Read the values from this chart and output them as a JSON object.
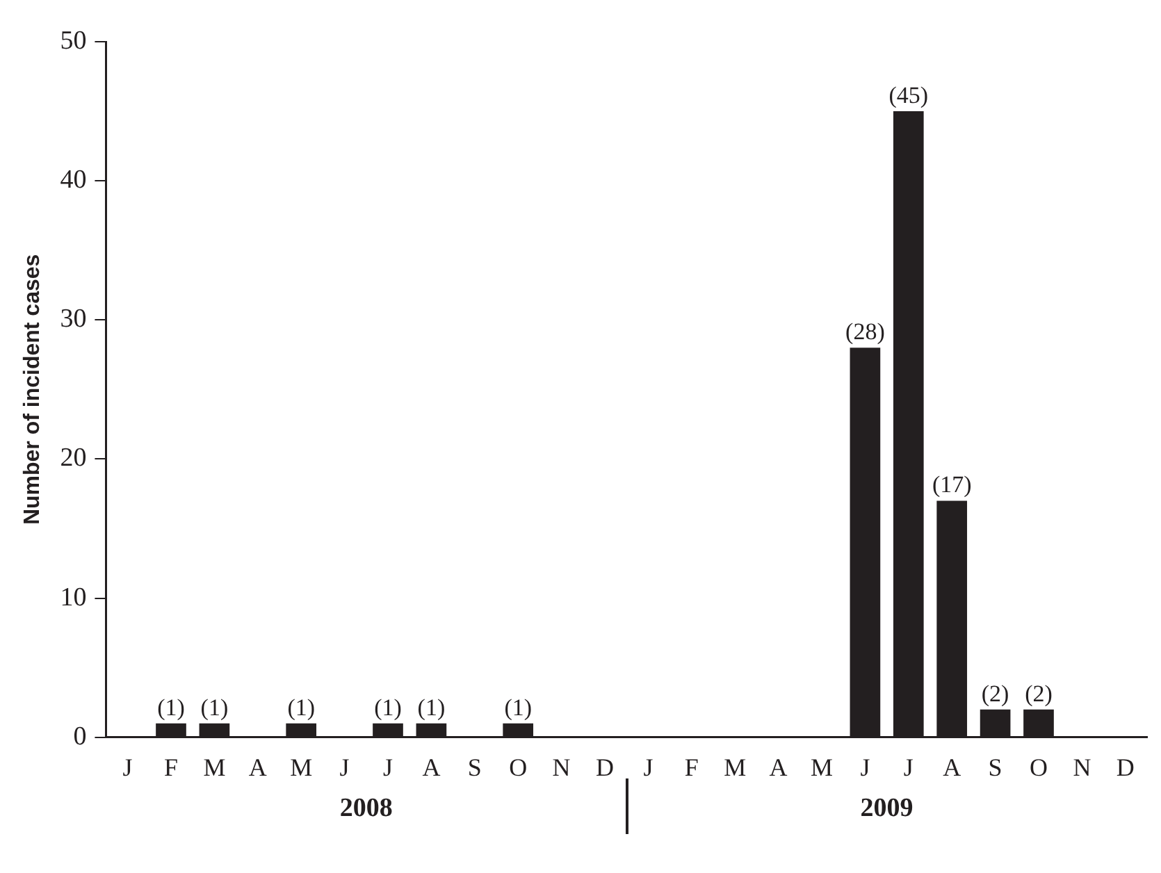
{
  "chart_data": {
    "type": "bar",
    "ylabel": "Number of incident cases",
    "categories": [
      "J",
      "F",
      "M",
      "A",
      "M",
      "J",
      "J",
      "A",
      "S",
      "O",
      "N",
      "D",
      "J",
      "F",
      "M",
      "A",
      "M",
      "J",
      "J",
      "A",
      "S",
      "O",
      "N",
      "D"
    ],
    "values": [
      0,
      1,
      1,
      0,
      1,
      0,
      1,
      1,
      0,
      1,
      0,
      0,
      0,
      0,
      0,
      0,
      0,
      28,
      45,
      17,
      2,
      2,
      0,
      0
    ],
    "value_labels": [
      null,
      "(1)",
      "(1)",
      null,
      "(1)",
      null,
      "(1)",
      "(1)",
      null,
      "(1)",
      null,
      null,
      null,
      null,
      null,
      null,
      null,
      "(28)",
      "(45)",
      "(17)",
      "(2)",
      "(2)",
      null,
      null
    ],
    "color": "#231f20",
    "ylim": [
      0,
      50
    ],
    "yticks": [
      0,
      10,
      20,
      30,
      40,
      50
    ],
    "grid": false,
    "legend": false,
    "annotations": [
      "2008",
      "2009"
    ]
  }
}
